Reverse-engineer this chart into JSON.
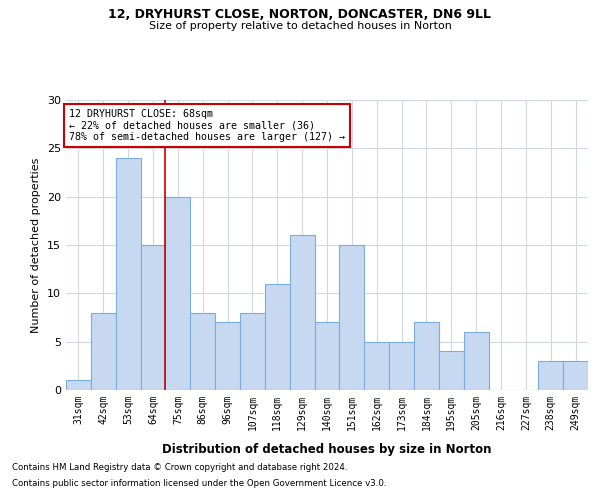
{
  "title1": "12, DRYHURST CLOSE, NORTON, DONCASTER, DN6 9LL",
  "title2": "Size of property relative to detached houses in Norton",
  "xlabel": "Distribution of detached houses by size in Norton",
  "ylabel": "Number of detached properties",
  "categories": [
    "31sqm",
    "42sqm",
    "53sqm",
    "64sqm",
    "75sqm",
    "86sqm",
    "96sqm",
    "107sqm",
    "118sqm",
    "129sqm",
    "140sqm",
    "151sqm",
    "162sqm",
    "173sqm",
    "184sqm",
    "195sqm",
    "205sqm",
    "216sqm",
    "227sqm",
    "238sqm",
    "249sqm"
  ],
  "values": [
    1,
    8,
    24,
    15,
    20,
    8,
    7,
    8,
    11,
    16,
    7,
    15,
    5,
    5,
    7,
    4,
    6,
    0,
    0,
    3,
    3
  ],
  "bar_color": "#c6d9f0",
  "bar_edge_color": "#7aadde",
  "marker_index": 3,
  "marker_color": "#cc0000",
  "ylim": [
    0,
    30
  ],
  "yticks": [
    0,
    5,
    10,
    15,
    20,
    25,
    30
  ],
  "annotation_title": "12 DRYHURST CLOSE: 68sqm",
  "annotation_line1": "← 22% of detached houses are smaller (36)",
  "annotation_line2": "78% of semi-detached houses are larger (127) →",
  "annotation_box_color": "#ffffff",
  "annotation_box_edge": "#cc0000",
  "footer1": "Contains HM Land Registry data © Crown copyright and database right 2024.",
  "footer2": "Contains public sector information licensed under the Open Government Licence v3.0.",
  "background_color": "#ffffff",
  "grid_color": "#d0d8e8"
}
